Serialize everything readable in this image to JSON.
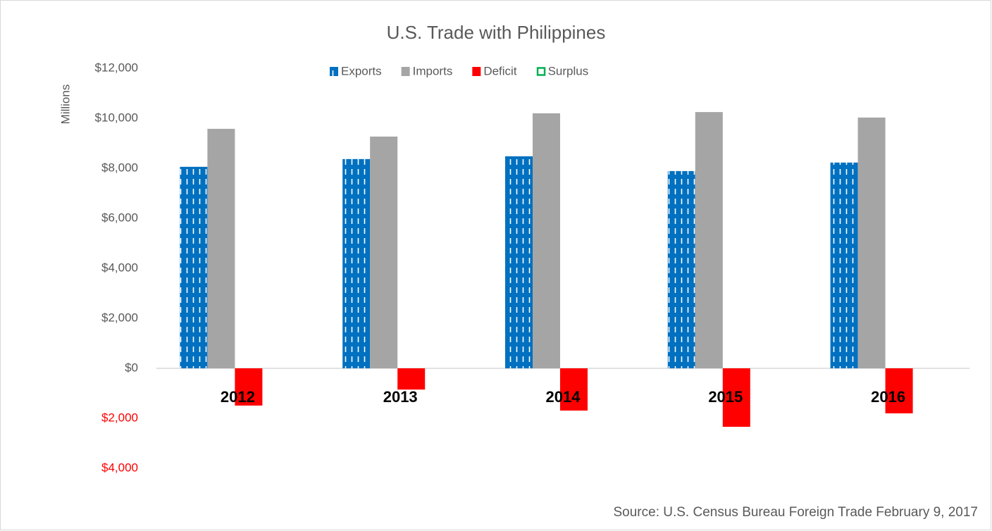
{
  "chart_data": {
    "type": "bar",
    "title": "U.S. Trade with Philippines",
    "y_label": "Millions",
    "source": "Source: U.S. Census Bureau Foreign Trade February 9, 2017",
    "categories": [
      "2012",
      "2013",
      "2014",
      "2015",
      "2016"
    ],
    "series": [
      {
        "name": "Exports",
        "color": "#0070c0",
        "pattern": "dashed",
        "values": [
          8060,
          8370,
          8480,
          7890,
          8230
        ]
      },
      {
        "name": "Imports",
        "color": "#a5a5a5",
        "values": [
          9580,
          9270,
          10200,
          10250,
          10030
        ]
      },
      {
        "name": "Deficit",
        "color": "#ff0000",
        "values": [
          -1490,
          -850,
          -1690,
          -2340,
          -1800
        ]
      },
      {
        "name": "Surplus",
        "color": "#00b050",
        "pattern": "hollow",
        "values": [
          null,
          null,
          null,
          null,
          null
        ]
      }
    ],
    "ylim": [
      -4000,
      12000
    ],
    "yticks": [
      {
        "value": -4000,
        "label": "$4,000"
      },
      {
        "value": -2000,
        "label": "$2,000"
      },
      {
        "value": 0,
        "label": "$0"
      },
      {
        "value": 2000,
        "label": "$2,000"
      },
      {
        "value": 4000,
        "label": "$4,000"
      },
      {
        "value": 6000,
        "label": "$6,000"
      },
      {
        "value": 8000,
        "label": "$8,000"
      },
      {
        "value": 10000,
        "label": "$10,000"
      },
      {
        "value": 12000,
        "label": "$12,000"
      }
    ],
    "negative_color": "#ff0000",
    "legend": "top"
  }
}
